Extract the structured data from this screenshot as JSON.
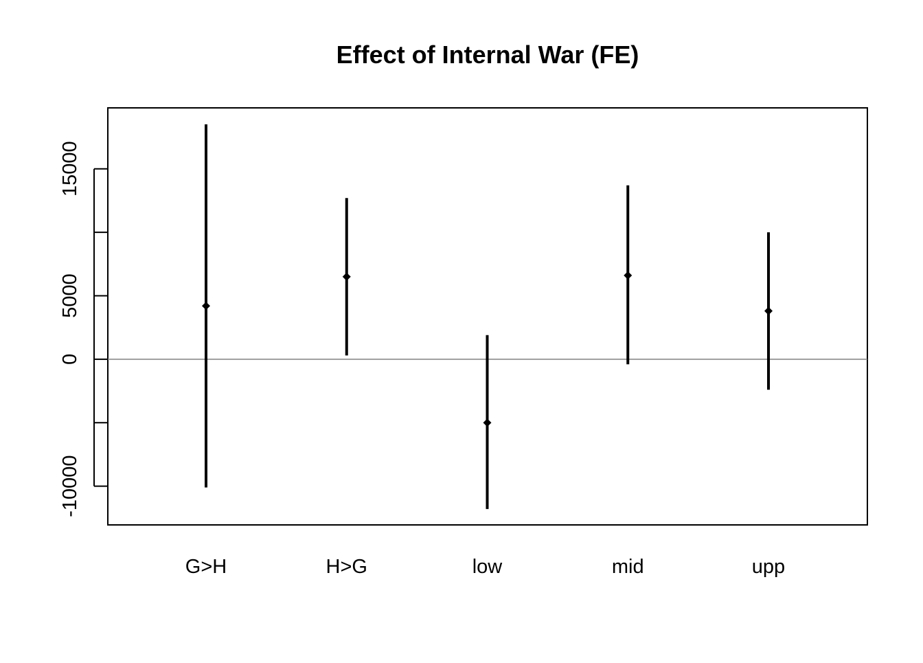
{
  "chart_data": {
    "type": "scatter",
    "title": "Effect of Internal War (FE)",
    "xlabel": "",
    "ylabel": "",
    "categories": [
      "G>H",
      "H>G",
      "low",
      "mid",
      "upp"
    ],
    "estimates": [
      4200,
      6500,
      -5000,
      6600,
      3800
    ],
    "lower": [
      -10100,
      300,
      -11800,
      -400,
      -2400
    ],
    "upper": [
      18500,
      12700,
      1900,
      13700,
      10000
    ],
    "ylim": [
      -13050,
      19800
    ],
    "y_ticks": [
      -10000,
      -5000,
      0,
      5000,
      10000,
      15000
    ],
    "y_tick_labels": [
      "-10000",
      "",
      "0",
      "5000",
      "",
      "15000"
    ],
    "reference_line": 0,
    "grid": false,
    "legend": "none",
    "colors": {
      "marks": "#000000",
      "reference_line": "#808080",
      "frame": "#000000"
    }
  }
}
